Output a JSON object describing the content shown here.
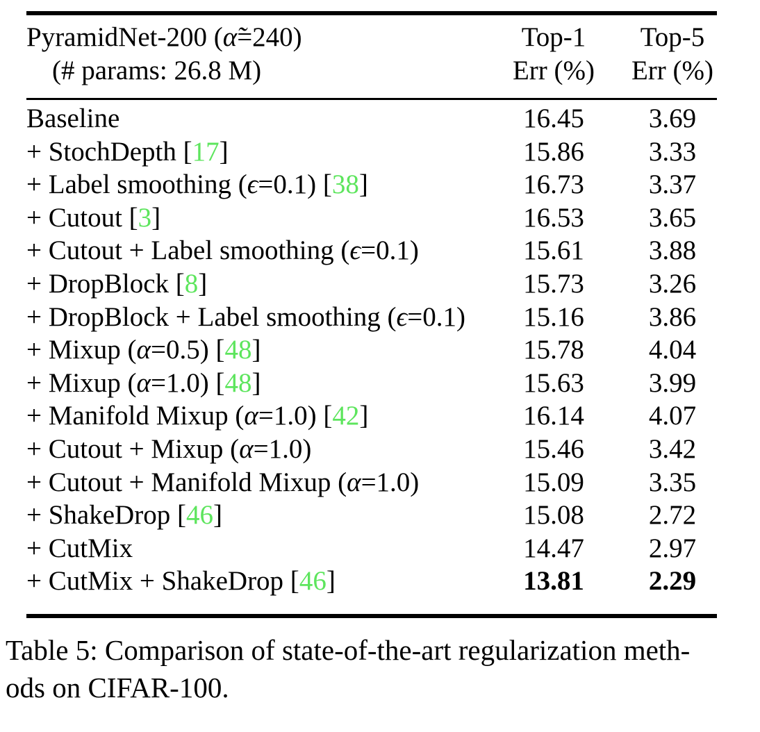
{
  "colors": {
    "cite_green": "#5de55d",
    "text": "#000000",
    "background": "#ffffff"
  },
  "table": {
    "header": {
      "col1_line1_segments": [
        {
          "t": "PyramidNet-200 ("
        },
        {
          "t": "α̃",
          "style": "it"
        },
        {
          "t": "=240)"
        }
      ],
      "col1_line2": "(# params: 26.8 M)",
      "col2_line1": "Top-1",
      "col2_line2": "Err (%)",
      "col3_line1": "Top-5",
      "col3_line2": "Err (%)"
    },
    "rows": [
      {
        "method": [
          {
            "t": "Baseline"
          }
        ],
        "top1": "16.45",
        "top5": "3.69",
        "bold": false
      },
      {
        "method": [
          {
            "t": "+ StochDepth ["
          },
          {
            "t": "17",
            "style": "cite"
          },
          {
            "t": "]"
          }
        ],
        "top1": "15.86",
        "top5": "3.33",
        "bold": false
      },
      {
        "method": [
          {
            "t": "+ Label smoothing ("
          },
          {
            "t": "ϵ",
            "style": "it"
          },
          {
            "t": "=0.1) ["
          },
          {
            "t": "38",
            "style": "cite"
          },
          {
            "t": "]"
          }
        ],
        "top1": "16.73",
        "top5": "3.37",
        "bold": false
      },
      {
        "method": [
          {
            "t": "+ Cutout ["
          },
          {
            "t": "3",
            "style": "cite"
          },
          {
            "t": "]"
          }
        ],
        "top1": "16.53",
        "top5": "3.65",
        "bold": false
      },
      {
        "method": [
          {
            "t": "+ Cutout + Label smoothing ("
          },
          {
            "t": "ϵ",
            "style": "it"
          },
          {
            "t": "=0.1)"
          }
        ],
        "top1": "15.61",
        "top5": "3.88",
        "bold": false
      },
      {
        "method": [
          {
            "t": "+ DropBlock ["
          },
          {
            "t": "8",
            "style": "cite"
          },
          {
            "t": "]"
          }
        ],
        "top1": "15.73",
        "top5": "3.26",
        "bold": false
      },
      {
        "method": [
          {
            "t": "+ DropBlock + Label smoothing ("
          },
          {
            "t": "ϵ",
            "style": "it"
          },
          {
            "t": "=0.1)"
          }
        ],
        "top1": "15.16",
        "top5": "3.86",
        "bold": false
      },
      {
        "method": [
          {
            "t": "+ Mixup ("
          },
          {
            "t": "α",
            "style": "it"
          },
          {
            "t": "=0.5) ["
          },
          {
            "t": "48",
            "style": "cite"
          },
          {
            "t": "]"
          }
        ],
        "top1": "15.78",
        "top5": "4.04",
        "bold": false
      },
      {
        "method": [
          {
            "t": "+ Mixup ("
          },
          {
            "t": "α",
            "style": "it"
          },
          {
            "t": "=1.0) ["
          },
          {
            "t": "48",
            "style": "cite"
          },
          {
            "t": "]"
          }
        ],
        "top1": "15.63",
        "top5": "3.99",
        "bold": false
      },
      {
        "method": [
          {
            "t": "+ Manifold Mixup ("
          },
          {
            "t": "α",
            "style": "it"
          },
          {
            "t": "=1.0) ["
          },
          {
            "t": "42",
            "style": "cite"
          },
          {
            "t": "]"
          }
        ],
        "top1": "16.14",
        "top5": "4.07",
        "bold": false
      },
      {
        "method": [
          {
            "t": "+ Cutout + Mixup ("
          },
          {
            "t": "α",
            "style": "it"
          },
          {
            "t": "=1.0)"
          }
        ],
        "top1": "15.46",
        "top5": "3.42",
        "bold": false
      },
      {
        "method": [
          {
            "t": "+ Cutout + Manifold Mixup ("
          },
          {
            "t": "α",
            "style": "it"
          },
          {
            "t": "=1.0)"
          }
        ],
        "top1": "15.09",
        "top5": "3.35",
        "bold": false
      },
      {
        "method": [
          {
            "t": "+ ShakeDrop ["
          },
          {
            "t": "46",
            "style": "cite"
          },
          {
            "t": "]"
          }
        ],
        "top1": "15.08",
        "top5": "2.72",
        "bold": false
      },
      {
        "method": [
          {
            "t": "+ CutMix"
          }
        ],
        "top1": "14.47",
        "top5": "2.97",
        "bold": false
      },
      {
        "method": [
          {
            "t": "+ CutMix + ShakeDrop ["
          },
          {
            "t": "46",
            "style": "cite"
          },
          {
            "t": "]"
          }
        ],
        "top1": "13.81",
        "top5": "2.29",
        "bold": true
      }
    ]
  },
  "caption": {
    "line1": "Table 5: Comparison of state-of-the-art regularization meth-",
    "line2": "ods on CIFAR-100."
  }
}
